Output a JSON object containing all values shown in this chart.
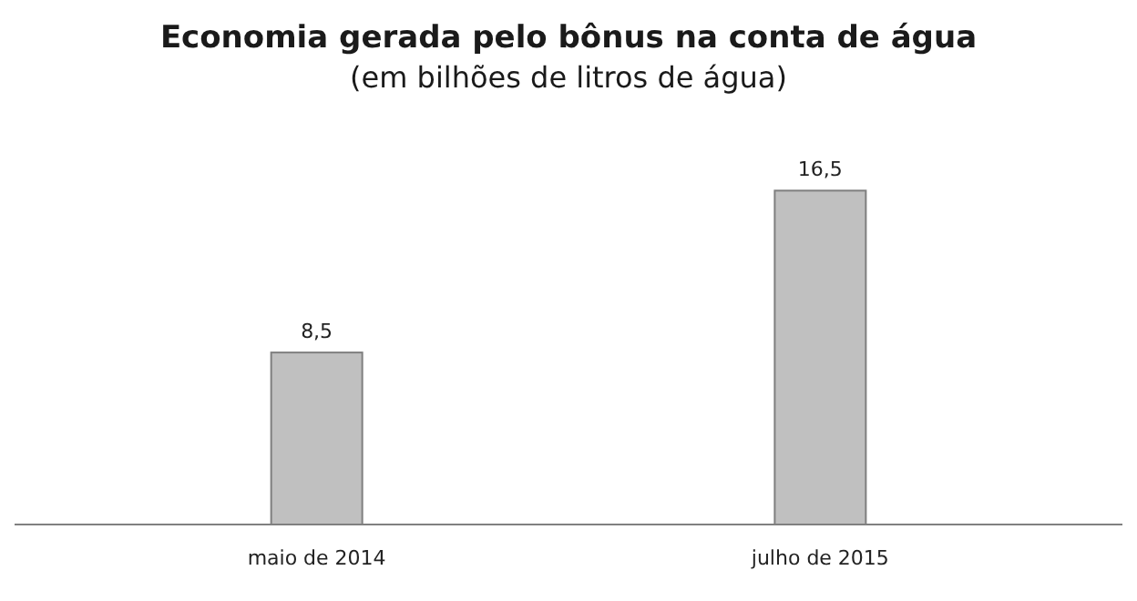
{
  "chart_data": {
    "type": "bar",
    "title": "Economia gerada pelo bônus na conta de água",
    "subtitle": "(em bilhões de litros de água)",
    "categories": [
      "maio de 2014",
      "julho de 2015"
    ],
    "values": [
      8.5,
      16.5
    ],
    "color": "#c0c0c0",
    "value_labels": [
      "8,5",
      "16,5"
    ]
  }
}
